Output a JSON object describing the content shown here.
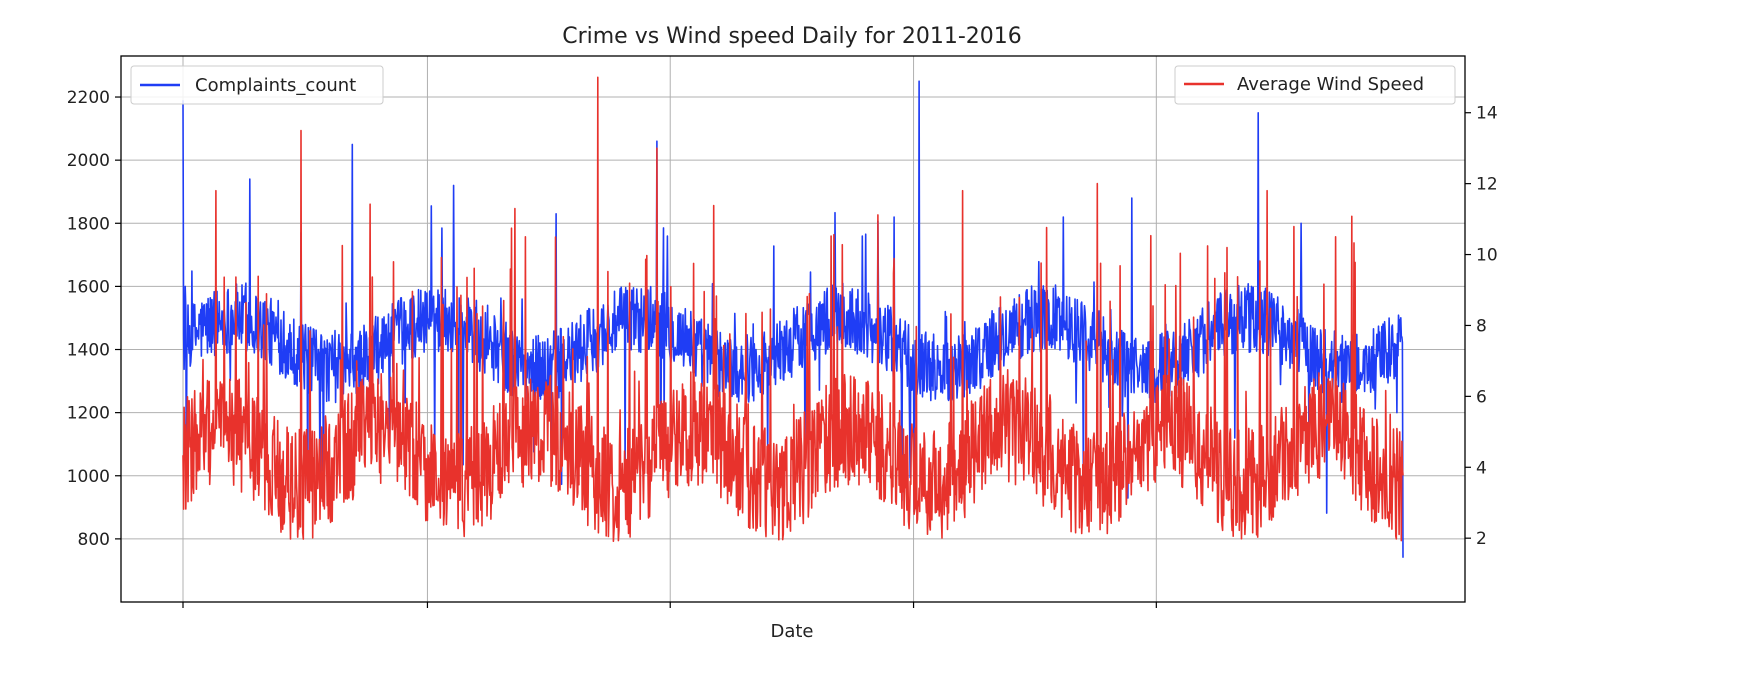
{
  "chart_data": {
    "type": "line",
    "title": "Crime vs Wind speed Daily for 2011-2016",
    "xlabel": "Date",
    "x_start": "2011-01-01",
    "x_end": "2016-12-31",
    "grid": true,
    "left_axis": {
      "ylim": [
        600,
        2330
      ],
      "ticks": [
        800,
        1000,
        1200,
        1400,
        1600,
        1800,
        2000,
        2200
      ]
    },
    "right_axis": {
      "ylim": [
        0.2,
        15.6
      ],
      "ticks": [
        2,
        4,
        6,
        8,
        10,
        12,
        14
      ]
    },
    "series": [
      {
        "name": "Complaints_count",
        "axis": "left",
        "color": "#1f3df5",
        "legend_position": "upper-left",
        "keypoints": [
          [
            "2011-01-01",
            2190
          ],
          [
            "2011-01-07",
            1000
          ],
          [
            "2011-02-01",
            1480
          ],
          [
            "2011-03-01",
            1400
          ],
          [
            "2011-04-01",
            1500
          ],
          [
            "2011-05-01",
            1940
          ],
          [
            "2011-06-01",
            1500
          ],
          [
            "2011-07-01",
            1520
          ],
          [
            "2011-08-01",
            1770
          ],
          [
            "2011-09-01",
            1400
          ],
          [
            "2011-10-01",
            1460
          ],
          [
            "2011-11-01",
            2050
          ],
          [
            "2011-12-01",
            1300
          ],
          [
            "2012-01-01",
            1480
          ],
          [
            "2012-02-01",
            1400
          ],
          [
            "2012-03-01",
            1500
          ],
          [
            "2012-05-01",
            1920
          ],
          [
            "2012-07-01",
            1540
          ],
          [
            "2012-09-01",
            1560
          ],
          [
            "2012-11-01",
            1830
          ],
          [
            "2013-01-01",
            1460
          ],
          [
            "2013-03-01",
            1480
          ],
          [
            "2013-05-01",
            2060
          ],
          [
            "2013-07-01",
            1520
          ],
          [
            "2013-09-01",
            1420
          ],
          [
            "2013-11-01",
            1380
          ],
          [
            "2014-01-01",
            1420
          ],
          [
            "2014-03-01",
            1400
          ],
          [
            "2014-05-01",
            1520
          ],
          [
            "2014-07-01",
            1820
          ],
          [
            "2014-08-15",
            2250
          ],
          [
            "2014-10-01",
            1520
          ],
          [
            "2015-01-01",
            1450
          ],
          [
            "2015-03-01",
            1400
          ],
          [
            "2015-05-01",
            1820
          ],
          [
            "2015-07-01",
            1520
          ],
          [
            "2015-09-01",
            1880
          ],
          [
            "2015-11-01",
            1480
          ],
          [
            "2016-01-01",
            1440
          ],
          [
            "2016-04-15",
            2150
          ],
          [
            "2016-07-01",
            1800
          ],
          [
            "2016-09-01",
            1380
          ],
          [
            "2016-11-01",
            1400
          ],
          [
            "2016-12-20",
            1200
          ],
          [
            "2016-12-31",
            740
          ]
        ]
      },
      {
        "name": "Average Wind Speed",
        "axis": "right",
        "color": "#e8322c",
        "legend_position": "upper-right",
        "keypoints": [
          [
            "2011-01-01",
            4.0
          ],
          [
            "2011-02-01",
            5.0
          ],
          [
            "2011-03-01",
            11.8
          ],
          [
            "2011-04-01",
            6.0
          ],
          [
            "2011-05-01",
            4.5
          ],
          [
            "2011-06-01",
            4.0
          ],
          [
            "2011-07-01",
            3.5
          ],
          [
            "2011-08-01",
            13.5
          ],
          [
            "2011-09-01",
            4.5
          ],
          [
            "2011-10-01",
            5.5
          ],
          [
            "2011-11-01",
            6.0
          ],
          [
            "2011-12-01",
            7.0
          ],
          [
            "2012-02-01",
            6.0
          ],
          [
            "2012-04-01",
            4.0
          ],
          [
            "2012-06-01",
            3.5
          ],
          [
            "2012-08-01",
            4.0
          ],
          [
            "2012-10-01",
            4.5
          ],
          [
            "2012-12-01",
            8.0
          ],
          [
            "2013-01-15",
            15.0
          ],
          [
            "2013-03-01",
            5.0
          ],
          [
            "2013-05-01",
            13.0
          ],
          [
            "2013-07-01",
            7.0
          ],
          [
            "2013-09-01",
            4.0
          ],
          [
            "2013-11-01",
            3.5
          ],
          [
            "2014-01-01",
            5.5
          ],
          [
            "2014-03-01",
            6.0
          ],
          [
            "2014-05-01",
            4.5
          ],
          [
            "2014-07-01",
            5.5
          ],
          [
            "2014-09-01",
            4.0
          ],
          [
            "2014-11-01",
            11.8
          ],
          [
            "2015-01-01",
            6.0
          ],
          [
            "2015-03-01",
            8.5
          ],
          [
            "2015-05-01",
            6.0
          ],
          [
            "2015-07-01",
            12.0
          ],
          [
            "2015-09-01",
            6.5
          ],
          [
            "2015-11-01",
            4.0
          ],
          [
            "2016-01-01",
            4.5
          ],
          [
            "2016-03-01",
            8.0
          ],
          [
            "2016-05-01",
            11.8
          ],
          [
            "2016-07-01",
            5.0
          ],
          [
            "2016-09-01",
            10.5
          ],
          [
            "2016-11-01",
            7.0
          ],
          [
            "2016-12-31",
            8.5
          ]
        ]
      }
    ]
  }
}
